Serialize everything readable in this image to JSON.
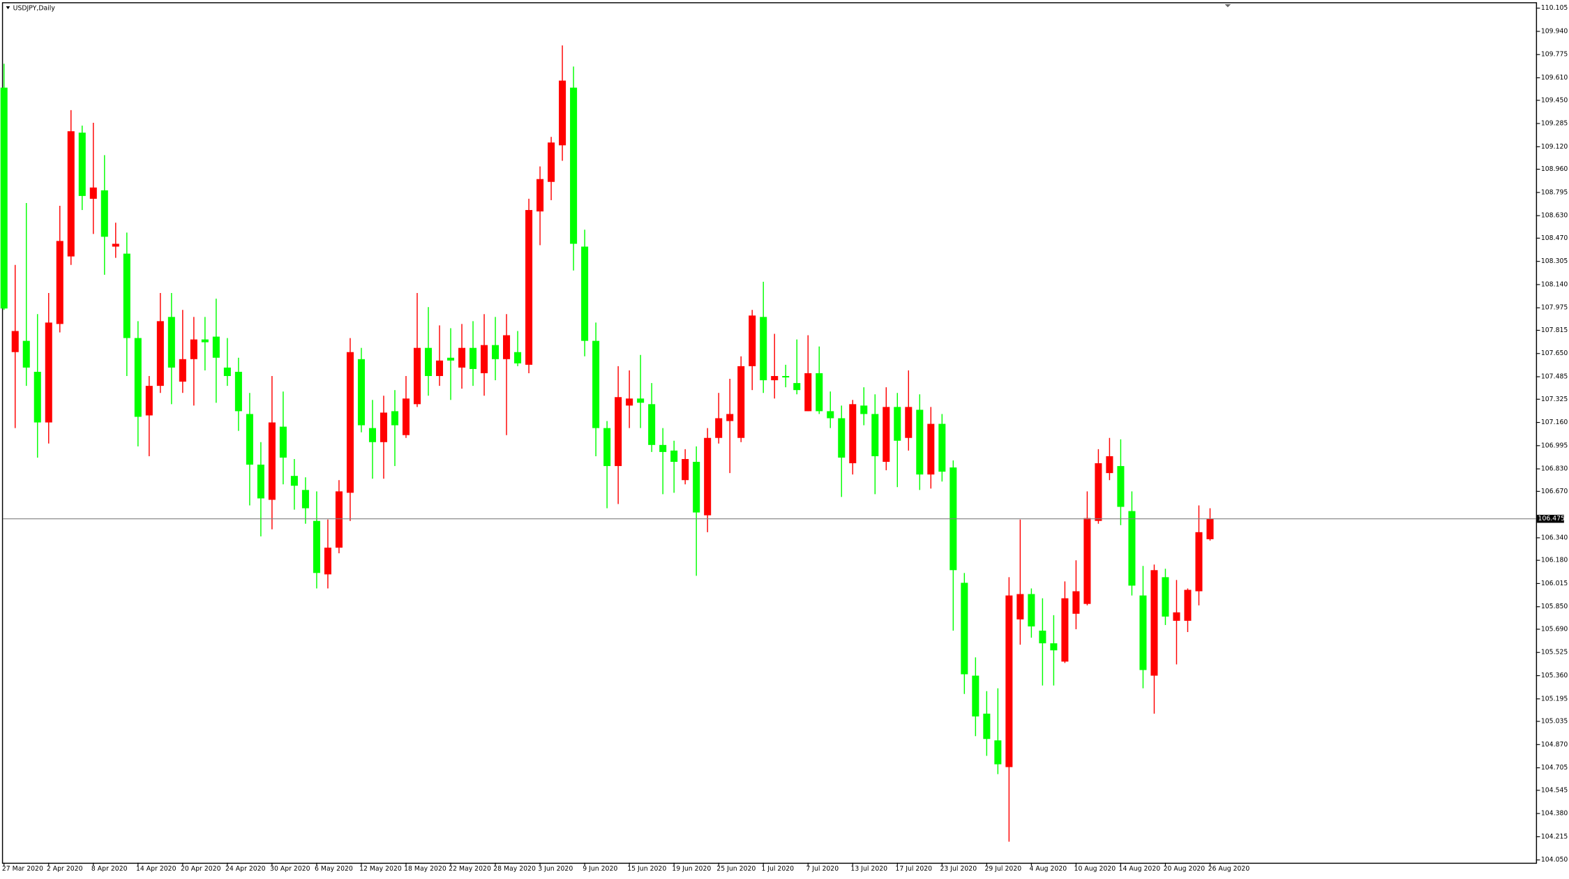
{
  "chart_data": {
    "type": "candlestick",
    "title": "USDJPY,Daily",
    "categories": [
      "27 Mar 2020",
      null,
      null,
      null,
      "2 Apr 2020",
      null,
      null,
      null,
      "8 Apr 2020",
      null,
      null,
      null,
      "14 Apr 2020",
      null,
      null,
      null,
      "20 Apr 2020",
      null,
      null,
      null,
      "24 Apr 2020",
      null,
      null,
      null,
      "30 Apr 2020",
      null,
      null,
      null,
      "6 May 2020",
      null,
      null,
      null,
      "12 May 2020",
      null,
      null,
      null,
      "18 May 2020",
      null,
      null,
      null,
      "22 May 2020",
      null,
      null,
      null,
      "28 May 2020",
      null,
      null,
      null,
      "3 Jun 2020",
      null,
      null,
      null,
      "9 Jun 2020",
      null,
      null,
      null,
      "15 Jun 2020",
      null,
      null,
      null,
      "19 Jun 2020",
      null,
      null,
      null,
      "25 Jun 2020",
      null,
      null,
      null,
      "1 Jul 2020",
      null,
      null,
      null,
      "7 Jul 2020",
      null,
      null,
      null,
      "13 Jul 2020",
      null,
      null,
      null,
      "17 Jul 2020",
      null,
      null,
      null,
      "23 Jul 2020",
      null,
      null,
      null,
      "29 Jul 2020",
      null,
      null,
      null,
      "4 Aug 2020",
      null,
      null,
      null,
      "10 Aug 2020",
      null,
      null,
      null,
      "14 Aug 2020",
      null,
      null,
      null,
      "20 Aug 2020",
      null,
      null,
      null,
      "26 Aug 2020"
    ],
    "open": [
      109.54,
      107.66,
      107.74,
      107.52,
      107.16,
      107.86,
      108.34,
      109.22,
      108.75,
      108.81,
      108.41,
      108.36,
      107.76,
      107.21,
      107.42,
      107.91,
      107.45,
      107.61,
      107.75,
      107.77,
      107.55,
      107.52,
      107.22,
      106.86,
      106.61,
      107.13,
      106.78,
      106.68,
      106.46,
      106.08,
      106.27,
      106.66,
      107.61,
      107.12,
      107.02,
      107.24,
      107.07,
      107.29,
      107.69,
      107.49,
      107.62,
      107.55,
      107.69,
      107.51,
      107.71,
      107.61,
      107.66,
      107.57,
      108.66,
      108.87,
      109.13,
      109.54,
      108.41,
      107.74,
      107.12,
      106.85,
      107.28,
      107.33,
      107.29,
      107.0,
      106.96,
      106.75,
      106.88,
      106.5,
      107.05,
      107.17,
      107.05,
      107.56,
      107.91,
      107.46,
      107.49,
      107.44,
      107.24,
      107.51,
      107.24,
      107.19,
      106.87,
      107.28,
      107.22,
      106.88,
      107.27,
      107.05,
      107.25,
      106.79,
      107.15,
      106.84,
      106.02,
      105.36,
      105.09,
      104.9,
      104.71,
      105.76,
      105.94,
      105.68,
      105.59,
      105.46,
      105.8,
      105.87,
      106.46,
      106.8,
      106.85,
      106.53,
      105.93,
      105.36,
      106.06,
      105.75,
      105.75,
      105.96,
      106.33
    ],
    "high": [
      109.71,
      108.28,
      108.72,
      107.93,
      108.08,
      108.7,
      109.38,
      109.27,
      109.29,
      109.06,
      108.58,
      108.51,
      107.88,
      107.49,
      108.08,
      108.08,
      107.96,
      107.91,
      107.91,
      108.04,
      107.76,
      107.62,
      107.37,
      107.02,
      107.49,
      107.38,
      106.9,
      106.77,
      106.67,
      106.47,
      106.75,
      107.76,
      107.69,
      107.32,
      107.35,
      107.39,
      107.49,
      108.08,
      107.98,
      107.85,
      107.83,
      107.86,
      107.88,
      107.93,
      107.91,
      107.93,
      107.81,
      108.75,
      108.98,
      109.19,
      109.84,
      109.69,
      108.53,
      107.87,
      107.17,
      107.56,
      107.53,
      107.64,
      107.44,
      107.12,
      107.03,
      106.97,
      106.99,
      107.12,
      107.37,
      107.47,
      107.63,
      107.96,
      108.16,
      107.79,
      107.57,
      107.75,
      107.78,
      107.7,
      107.38,
      107.28,
      107.32,
      107.41,
      107.36,
      107.41,
      107.37,
      107.53,
      107.36,
      107.27,
      107.22,
      106.89,
      106.09,
      105.49,
      105.25,
      105.27,
      106.06,
      106.47,
      105.98,
      105.91,
      105.79,
      106.03,
      106.18,
      106.67,
      106.97,
      107.05,
      107.04,
      106.67,
      106.14,
      106.15,
      106.12,
      106.04,
      105.98,
      106.57,
      106.55
    ],
    "low": [
      107.96,
      107.12,
      107.42,
      106.91,
      107.01,
      107.8,
      108.28,
      108.67,
      108.5,
      108.21,
      108.33,
      107.49,
      106.99,
      106.92,
      107.37,
      107.29,
      107.37,
      107.28,
      107.53,
      107.3,
      107.42,
      107.1,
      106.57,
      106.35,
      106.4,
      106.72,
      106.54,
      106.44,
      105.98,
      105.98,
      106.23,
      106.46,
      107.09,
      106.76,
      106.76,
      106.85,
      107.05,
      107.27,
      107.35,
      107.42,
      107.32,
      107.4,
      107.42,
      107.35,
      107.46,
      107.07,
      107.56,
      107.51,
      108.42,
      108.74,
      109.02,
      108.24,
      107.63,
      106.92,
      106.55,
      106.58,
      107.12,
      107.12,
      106.95,
      106.65,
      106.66,
      106.72,
      106.07,
      106.38,
      107.01,
      106.8,
      107.02,
      107.39,
      107.37,
      107.33,
      107.41,
      107.36,
      107.24,
      107.22,
      107.12,
      106.63,
      106.79,
      107.14,
      106.65,
      106.82,
      106.7,
      106.96,
      106.68,
      106.69,
      106.74,
      105.68,
      105.23,
      104.93,
      104.79,
      104.66,
      104.18,
      105.58,
      105.63,
      105.29,
      105.29,
      105.45,
      105.69,
      105.86,
      106.44,
      106.75,
      106.43,
      105.93,
      105.27,
      105.09,
      105.72,
      105.44,
      105.67,
      105.86,
      106.32
    ],
    "close": [
      107.97,
      107.81,
      107.55,
      107.16,
      107.87,
      108.45,
      109.23,
      108.77,
      108.83,
      108.48,
      108.43,
      107.76,
      107.2,
      107.42,
      107.88,
      107.55,
      107.61,
      107.75,
      107.73,
      107.62,
      107.49,
      107.24,
      106.86,
      106.62,
      107.16,
      106.91,
      106.71,
      106.55,
      106.09,
      106.27,
      106.67,
      107.66,
      107.14,
      107.02,
      107.23,
      107.14,
      107.33,
      107.69,
      107.49,
      107.6,
      107.6,
      107.69,
      107.54,
      107.71,
      107.61,
      107.78,
      107.58,
      108.67,
      108.89,
      109.15,
      109.59,
      108.43,
      107.74,
      107.12,
      106.85,
      107.34,
      107.33,
      107.3,
      107.0,
      106.95,
      106.88,
      106.9,
      106.52,
      107.05,
      107.19,
      107.22,
      107.56,
      107.92,
      107.46,
      107.49,
      107.48,
      107.39,
      107.51,
      107.24,
      107.19,
      106.91,
      107.29,
      107.22,
      106.92,
      107.27,
      107.03,
      107.27,
      106.79,
      107.15,
      106.81,
      106.11,
      105.37,
      105.07,
      104.91,
      104.73,
      105.93,
      105.94,
      105.71,
      105.59,
      105.54,
      105.91,
      105.96,
      106.48,
      106.87,
      106.92,
      106.56,
      106.0,
      105.4,
      106.11,
      105.78,
      105.81,
      105.97,
      106.38,
      106.475
    ],
    "up_color": "#ff0000",
    "down_color": "#00ff00",
    "current_price": 106.475,
    "ylim": [
      104.03,
      110.14
    ],
    "yticks": [
      110.105,
      {
        "value": 109.94,
        "label": "109.940"
      },
      109.775,
      {
        "value": 109.61,
        "label": "109.610"
      },
      {
        "value": 109.45,
        "label": "109.450"
      },
      109.285,
      {
        "value": 109.12,
        "label": "109.120"
      },
      {
        "value": 108.96,
        "label": "108.960"
      },
      108.795,
      {
        "value": 108.63,
        "label": "108.630"
      },
      {
        "value": 108.47,
        "label": "108.470"
      },
      108.305,
      {
        "value": 108.14,
        "label": "108.140"
      },
      107.975,
      107.815,
      {
        "value": 107.65,
        "label": "107.650"
      },
      107.485,
      107.325,
      {
        "value": 107.16,
        "label": "107.160"
      },
      106.995,
      {
        "value": 106.83,
        "label": "106.830"
      },
      {
        "value": 106.67,
        "label": "106.670"
      },
      {
        "value": 106.34,
        "label": "106.340"
      },
      {
        "value": 106.18,
        "label": "106.180"
      },
      106.015,
      {
        "value": 105.85,
        "label": "105.850"
      },
      {
        "value": 105.69,
        "label": "105.690"
      },
      105.525,
      {
        "value": 105.36,
        "label": "105.360"
      },
      105.195,
      105.035,
      {
        "value": 104.87,
        "label": "104.870"
      },
      104.705,
      104.545,
      {
        "value": 104.38,
        "label": "104.380"
      },
      104.215,
      {
        "value": 104.05,
        "label": "104.050"
      }
    ]
  }
}
